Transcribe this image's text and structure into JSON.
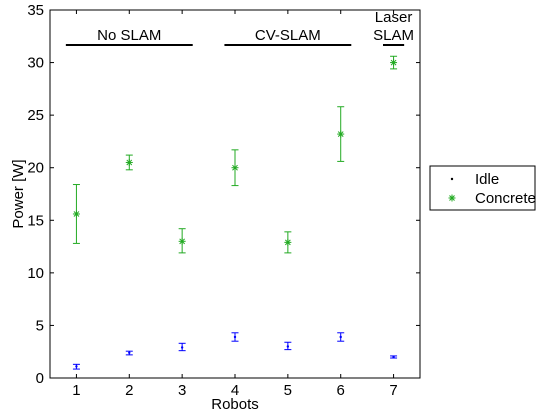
{
  "chart_data": {
    "type": "scatter",
    "xlabel": "Robots",
    "ylabel": "Power [W]",
    "xlim": [
      0.5,
      7.5
    ],
    "ylim": [
      0,
      35
    ],
    "x_ticks": [
      1,
      2,
      3,
      4,
      5,
      6,
      7
    ],
    "x_tick_labels": [
      "1",
      "2",
      "3",
      "4",
      "5",
      "6",
      "7"
    ],
    "y_ticks": [
      0,
      5,
      10,
      15,
      20,
      25,
      30,
      35
    ],
    "y_tick_labels": [
      "0",
      "5",
      "10",
      "15",
      "20",
      "25",
      "30",
      "35"
    ],
    "grid": false,
    "legend_position": "outside-right",
    "series": [
      {
        "name": "Idle",
        "marker": "dot",
        "color": "#0000ff",
        "x": [
          1,
          2,
          3,
          4,
          5,
          6,
          7
        ],
        "y": [
          1.1,
          2.4,
          2.9,
          3.9,
          3.0,
          3.9,
          2.0
        ],
        "err_low": [
          0.85,
          2.2,
          2.6,
          3.5,
          2.7,
          3.5,
          1.9
        ],
        "err_high": [
          1.3,
          2.55,
          3.3,
          4.3,
          3.4,
          4.3,
          2.1
        ]
      },
      {
        "name": "Concrete",
        "marker": "asterisk",
        "color": "#22aa22",
        "x": [
          1,
          2,
          3,
          4,
          5,
          6,
          7
        ],
        "y": [
          15.6,
          20.5,
          13.0,
          20.0,
          12.9,
          23.2,
          30.0
        ],
        "err_low": [
          12.8,
          19.8,
          11.9,
          18.3,
          11.9,
          20.6,
          29.4
        ],
        "err_high": [
          18.4,
          21.2,
          14.2,
          21.7,
          13.9,
          25.8,
          30.6
        ]
      }
    ],
    "groups": [
      {
        "label": "No SLAM",
        "from": 1,
        "to": 3
      },
      {
        "label": "CV-SLAM",
        "from": 4,
        "to": 6
      },
      {
        "label_lines": [
          "Laser",
          "SLAM"
        ],
        "from": 7,
        "to": 7
      }
    ]
  }
}
